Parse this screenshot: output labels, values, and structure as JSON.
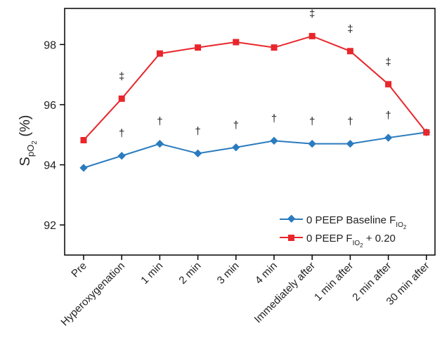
{
  "chart_data": {
    "type": "line",
    "title": "",
    "xlabel": "",
    "ylabel": {
      "base": "S",
      "sub1": "pO",
      "sub2": "2",
      "tail": " (%)"
    },
    "categories": [
      "Pre",
      "Hyperoxygenation",
      "1 min",
      "2 min",
      "3 min",
      "4 min",
      "Immediately after",
      "1 min after",
      "2 min after",
      "30 min after"
    ],
    "ylim": [
      91,
      99.2
    ],
    "yticks": [
      92,
      94,
      96,
      98
    ],
    "grid": false,
    "legend_position": "lower-right",
    "series": [
      {
        "legend": {
          "text": "0 PEEP Baseline F",
          "sub": "IO",
          "sub2": "2",
          "tail": ""
        },
        "color": "#2a7bbf",
        "marker": "diamond",
        "values": [
          93.9,
          94.3,
          94.7,
          94.38,
          94.58,
          94.8,
          94.7,
          94.7,
          94.9,
          95.08
        ],
        "annotations": [
          "",
          "†",
          "†",
          "†",
          "†",
          "†",
          "†",
          "†",
          "†",
          ""
        ]
      },
      {
        "legend": {
          "text": "0 PEEP F",
          "sub": "IO",
          "sub2": "2",
          "tail": " + 0.20"
        },
        "color": "#e8262b",
        "marker": "square",
        "values": [
          94.82,
          96.2,
          97.7,
          97.9,
          98.08,
          97.9,
          98.28,
          97.78,
          96.68,
          95.08
        ],
        "annotations": [
          "",
          "‡",
          "",
          "",
          "",
          "",
          "‡",
          "‡",
          "‡",
          ""
        ]
      }
    ]
  }
}
